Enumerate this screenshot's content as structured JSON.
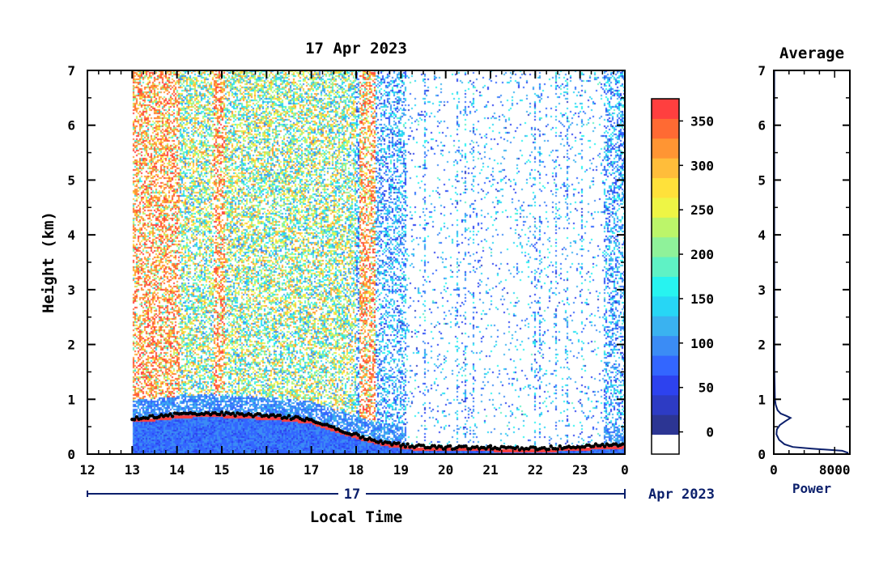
{
  "title": "17 Apr 2023",
  "avg_title": "Average",
  "xlabel": "Local Time",
  "ylabel": "Height (km)",
  "avg_xlabel": "Power",
  "date_day": "17",
  "date_month": "Apr 2023",
  "colors": {
    "frame": "#000000",
    "date_line": "#0b1f6b",
    "profile": "#0b1f6b",
    "background": "#ffffff"
  },
  "chart_data": [
    {
      "type": "heatmap",
      "title": "17 Apr 2023",
      "xlabel": "Local Time",
      "ylabel": "Height (km)",
      "x_ticks": [
        "12",
        "13",
        "14",
        "15",
        "16",
        "17",
        "18",
        "19",
        "20",
        "21",
        "22",
        "23",
        "0"
      ],
      "x_range_hours": [
        12,
        24
      ],
      "y_ticks": [
        "0",
        "1",
        "2",
        "3",
        "4",
        "5",
        "6",
        "7"
      ],
      "ylim": [
        0,
        7
      ],
      "data_start_hour": 13.0,
      "colorbar": {
        "ticks": [
          "0",
          "50",
          "100",
          "150",
          "200",
          "250",
          "300",
          "350"
        ],
        "tick_values": [
          0,
          50,
          100,
          150,
          200,
          250,
          300,
          350
        ],
        "range": [
          -25,
          375
        ],
        "colors": [
          "#ffffff",
          "#2c3593",
          "#2d3bc4",
          "#2d42ef",
          "#3366ff",
          "#3b8cf5",
          "#3ab2f0",
          "#27d6f5",
          "#27f3f0",
          "#5ff2c5",
          "#8ff29a",
          "#bcf56a",
          "#eef545",
          "#ffe13a",
          "#ffbd3a",
          "#ff9533",
          "#ff6a33",
          "#ff3f3f"
        ]
      },
      "features": {
        "boundary_layer_top_km": [
          [
            13.0,
            0.65
          ],
          [
            13.5,
            0.68
          ],
          [
            14.0,
            0.72
          ],
          [
            14.5,
            0.75
          ],
          [
            15.0,
            0.74
          ],
          [
            15.5,
            0.72
          ],
          [
            16.0,
            0.7
          ],
          [
            16.5,
            0.67
          ],
          [
            17.0,
            0.62
          ],
          [
            17.4,
            0.5
          ],
          [
            18.2,
            0.3
          ],
          [
            18.6,
            0.22
          ],
          [
            19.2,
            0.15
          ],
          [
            20.0,
            0.12
          ],
          [
            21.0,
            0.12
          ],
          [
            22.0,
            0.1
          ],
          [
            23.0,
            0.14
          ],
          [
            24.0,
            0.18
          ]
        ],
        "high_noise_periods_hours": [
          [
            13.0,
            14.05
          ],
          [
            14.8,
            15.05
          ],
          [
            18.05,
            18.4
          ]
        ],
        "clear_period_hours": [
          19.1,
          23.5
        ]
      }
    },
    {
      "type": "line",
      "title": "Average",
      "xlabel": "Power",
      "x_ticks": [
        "0",
        "8000"
      ],
      "xlim": [
        0,
        10000
      ],
      "y_ticks": [
        "0",
        "1",
        "2",
        "3",
        "4",
        "5",
        "6",
        "7"
      ],
      "ylim": [
        0,
        7
      ],
      "profile": [
        {
          "h": 0.02,
          "p": 9800
        },
        {
          "h": 0.06,
          "p": 9000
        },
        {
          "h": 0.1,
          "p": 5000
        },
        {
          "h": 0.13,
          "p": 2500
        },
        {
          "h": 0.18,
          "p": 1400
        },
        {
          "h": 0.26,
          "p": 700
        },
        {
          "h": 0.36,
          "p": 350
        },
        {
          "h": 0.45,
          "p": 400
        },
        {
          "h": 0.53,
          "p": 800
        },
        {
          "h": 0.6,
          "p": 1500
        },
        {
          "h": 0.66,
          "p": 2200
        },
        {
          "h": 0.7,
          "p": 1600
        },
        {
          "h": 0.74,
          "p": 900
        },
        {
          "h": 0.8,
          "p": 500
        },
        {
          "h": 0.9,
          "p": 250
        },
        {
          "h": 1.0,
          "p": 150
        },
        {
          "h": 1.5,
          "p": 90
        },
        {
          "h": 2.5,
          "p": 70
        },
        {
          "h": 4.0,
          "p": 65
        },
        {
          "h": 5.5,
          "p": 60
        },
        {
          "h": 7.0,
          "p": 60
        }
      ]
    }
  ]
}
